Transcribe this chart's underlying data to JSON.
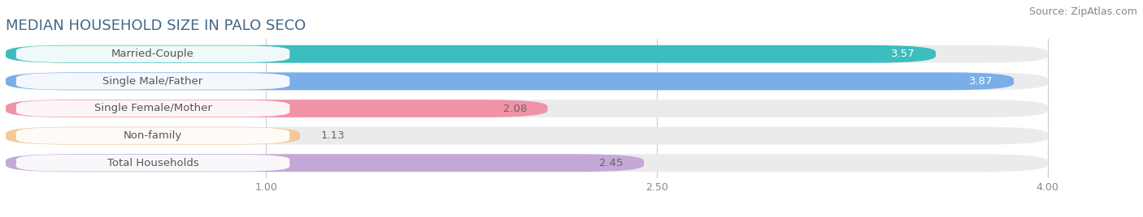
{
  "title": "MEDIAN HOUSEHOLD SIZE IN PALO SECO",
  "source": "Source: ZipAtlas.com",
  "categories": [
    "Married-Couple",
    "Single Male/Father",
    "Single Female/Mother",
    "Non-family",
    "Total Households"
  ],
  "values": [
    3.57,
    3.87,
    2.08,
    1.13,
    2.45
  ],
  "bar_colors": [
    "#3dbdbd",
    "#7aaee8",
    "#f093a8",
    "#f5c896",
    "#c4a8d8"
  ],
  "bar_edge_colors": [
    "#3dbdbd",
    "#7aaee8",
    "#f093a8",
    "#f5c896",
    "#c4a8d8"
  ],
  "xlim": [
    0.0,
    4.3
  ],
  "xdata_max": 4.0,
  "xticks": [
    1.0,
    2.5,
    4.0
  ],
  "value_color_inside": [
    "white",
    "white",
    "#666666",
    "#666666",
    "#666666"
  ],
  "value_threshold": 1.8,
  "label_color": "#555555",
  "background_color": "#ffffff",
  "bar_bg_color": "#ebebee",
  "title_fontsize": 13,
  "source_fontsize": 9,
  "label_fontsize": 9.5,
  "value_fontsize": 9.5,
  "bar_height": 0.65
}
